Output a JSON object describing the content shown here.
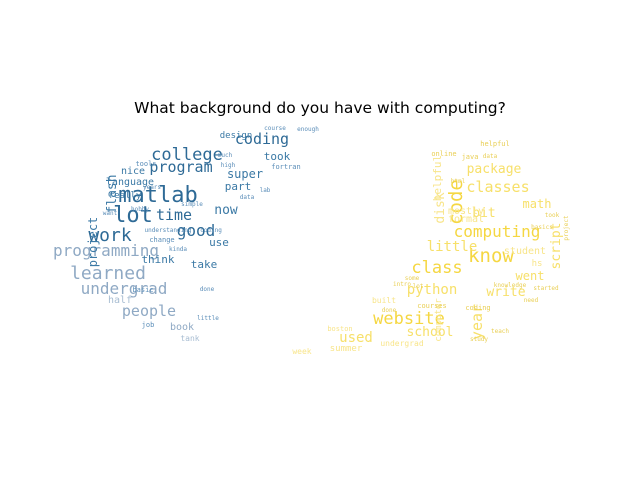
{
  "figure": {
    "title": "What background do you have with computing?"
  },
  "colors": {
    "left": [
      "#2e6a96",
      "#3b79a5",
      "#5a8db8",
      "#8fa9c4",
      "#a8bdd2"
    ],
    "right": [
      "#f5d742",
      "#f7e06a",
      "#f8e58a",
      "#e9cf55",
      "#f3dc7a"
    ]
  },
  "left_words": [
    {
      "t": "matlab",
      "c": 0
    },
    {
      "t": "lot",
      "c": 0
    },
    {
      "t": "college",
      "c": 0
    },
    {
      "t": "work",
      "c": 0
    },
    {
      "t": "programming",
      "c": 3
    },
    {
      "t": "learned",
      "c": 3
    },
    {
      "t": "undergrad",
      "c": 3
    },
    {
      "t": "time",
      "c": 0
    },
    {
      "t": "good",
      "c": 0
    },
    {
      "t": "program",
      "c": 0
    },
    {
      "t": "coding",
      "c": 0
    },
    {
      "t": "people",
      "c": 3
    },
    {
      "t": "flash",
      "c": 1
    },
    {
      "t": "project",
      "c": 1
    },
    {
      "t": "now",
      "c": 1
    },
    {
      "t": "super",
      "c": 1
    },
    {
      "t": "think",
      "c": 1
    },
    {
      "t": "take",
      "c": 1
    },
    {
      "t": "use",
      "c": 1
    },
    {
      "t": "part",
      "c": 1
    },
    {
      "t": "took",
      "c": 1
    },
    {
      "t": "language",
      "c": 1
    },
    {
      "t": "nice",
      "c": 1
    },
    {
      "t": "really",
      "c": 1
    },
    {
      "t": "half",
      "c": 4
    },
    {
      "t": "book",
      "c": 3
    },
    {
      "t": "design",
      "c": 1
    },
    {
      "t": "tank",
      "c": 4
    },
    {
      "t": "fortran",
      "c": 2
    },
    {
      "t": "change",
      "c": 2
    },
    {
      "t": "tools",
      "c": 2
    },
    {
      "t": "much",
      "c": 2
    },
    {
      "t": "data",
      "c": 2
    },
    {
      "t": "coding",
      "c": 2
    },
    {
      "t": "enough",
      "c": 2
    },
    {
      "t": "hobby",
      "c": 2
    },
    {
      "t": "understanding",
      "c": 2
    },
    {
      "t": "done",
      "c": 2
    },
    {
      "t": "basic",
      "c": 2
    },
    {
      "t": "job",
      "c": 2
    },
    {
      "t": "lab",
      "c": 2
    },
    {
      "t": "simple",
      "c": 2
    },
    {
      "t": "years",
      "c": 2
    },
    {
      "t": "little",
      "c": 2
    },
    {
      "t": "kinda",
      "c": 2
    },
    {
      "t": "want",
      "c": 2
    },
    {
      "t": "high",
      "c": 2
    },
    {
      "t": "course",
      "c": 2
    }
  ],
  "right_words": [
    {
      "t": "website",
      "c": 0
    },
    {
      "t": "know",
      "c": 0
    },
    {
      "t": "computing",
      "c": 0
    },
    {
      "t": "class",
      "c": 0
    },
    {
      "t": "code",
      "c": 0
    },
    {
      "t": "classes",
      "c": 1
    },
    {
      "t": "python",
      "c": 1
    },
    {
      "t": "little",
      "c": 1
    },
    {
      "t": "used",
      "c": 1
    },
    {
      "t": "school",
      "c": 1
    },
    {
      "t": "year",
      "c": 1
    },
    {
      "t": "write",
      "c": 1
    },
    {
      "t": "went",
      "c": 1
    },
    {
      "t": "bit",
      "c": 1
    },
    {
      "t": "math",
      "c": 1
    },
    {
      "t": "script",
      "c": 1
    },
    {
      "t": "package",
      "c": 1
    },
    {
      "t": "disk",
      "c": 2
    },
    {
      "t": "helpful",
      "c": 2
    },
    {
      "t": "formal",
      "c": 2
    },
    {
      "t": "mostly",
      "c": 2
    },
    {
      "t": "student",
      "c": 2
    },
    {
      "t": "hs",
      "c": 2
    },
    {
      "t": "computer",
      "c": 2
    },
    {
      "t": "summer",
      "c": 2
    },
    {
      "t": "built",
      "c": 2
    },
    {
      "t": "week",
      "c": 2
    },
    {
      "t": "boston",
      "c": 2
    },
    {
      "t": "undergrad",
      "c": 2
    },
    {
      "t": "helpful",
      "c": 3
    },
    {
      "t": "coding",
      "c": 3
    },
    {
      "t": "courses",
      "c": 3
    },
    {
      "t": "knowledge",
      "c": 3
    },
    {
      "t": "started",
      "c": 3
    },
    {
      "t": "online",
      "c": 3
    },
    {
      "t": "java",
      "c": 3
    },
    {
      "t": "data",
      "c": 3
    },
    {
      "t": "some",
      "c": 3
    },
    {
      "t": "lot",
      "c": 3
    },
    {
      "t": "basics",
      "c": 3
    },
    {
      "t": "took",
      "c": 3
    },
    {
      "t": "html",
      "c": 3
    },
    {
      "t": "need",
      "c": 3
    },
    {
      "t": "study",
      "c": 3
    },
    {
      "t": "teach",
      "c": 3
    },
    {
      "t": "intro",
      "c": 3
    },
    {
      "t": "project",
      "c": 3
    },
    {
      "t": "done",
      "c": 3
    }
  ]
}
